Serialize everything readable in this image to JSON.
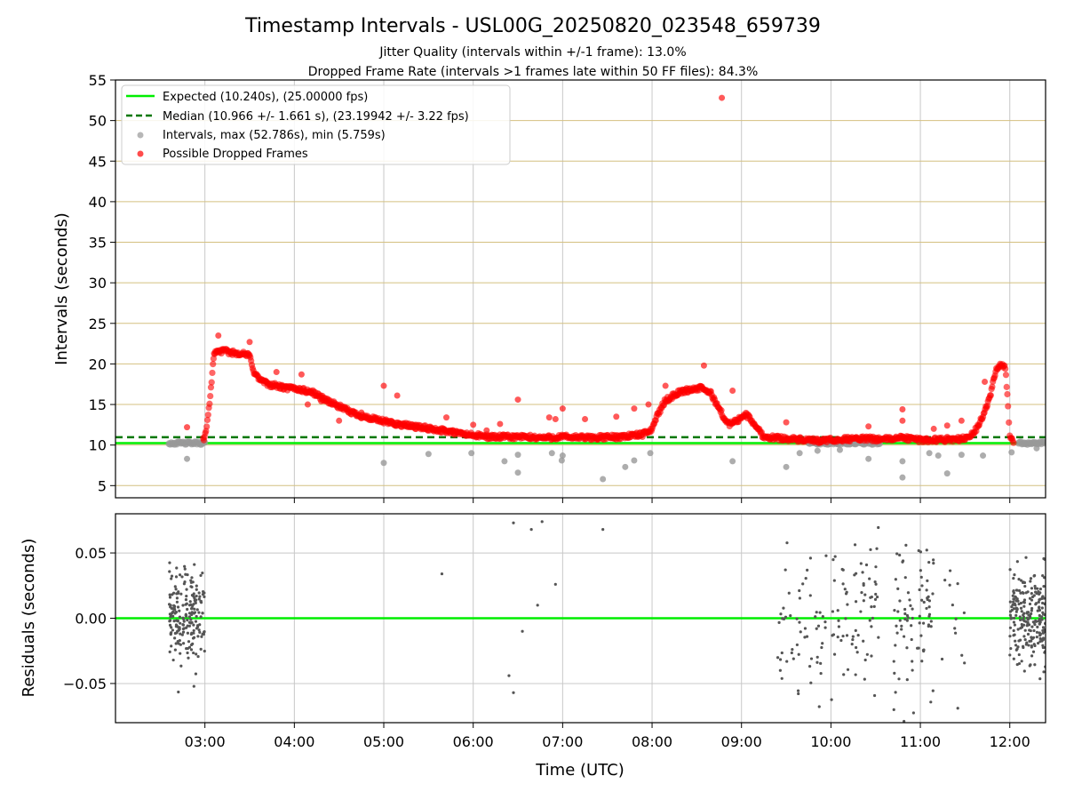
{
  "title": "Timestamp Intervals - USL00G_20250820_023548_659739",
  "subtitle_line1": "Jitter Quality (intervals within +/-1 frame): 13.0%",
  "subtitle_line2": "Dropped Frame Rate (intervals >1 frames late within 50 FF files): 84.3%",
  "colors": {
    "expected": "#00ee00",
    "median": "#007700",
    "intervals": "#999999",
    "dropped": "#ff0000",
    "residuals": "#555555",
    "hgrid_top": "#d4c080",
    "grid": "#c8c8c8"
  },
  "chart_data": [
    {
      "type": "scatter",
      "title": "",
      "xlabel": "",
      "ylabel": "Intervals (seconds)",
      "x_unit": "hours UTC",
      "xlim": [
        2.0,
        12.4
      ],
      "ylim": [
        3.5,
        55
      ],
      "yticks": [
        5,
        10,
        15,
        20,
        25,
        30,
        35,
        40,
        45,
        50,
        55
      ],
      "xticks": [
        3,
        4,
        5,
        6,
        7,
        8,
        9,
        10,
        11,
        12
      ],
      "xtick_labels": [
        "03:00",
        "04:00",
        "05:00",
        "06:00",
        "07:00",
        "08:00",
        "09:00",
        "10:00",
        "11:00",
        "12:00"
      ],
      "hgrid": true,
      "vgrid": true,
      "legend_position": "top-left",
      "legend": [
        "Expected (10.240s), (25.00000 fps)",
        "Median (10.966 +/- 1.661 s), (23.19942 +/- 3.22 fps)",
        "Intervals, max (52.786s), min (5.759s)",
        "Possible Dropped Frames"
      ],
      "expected_line": 10.24,
      "median_line": 10.966,
      "dropped_trend": [
        [
          2.98,
          10.6
        ],
        [
          3.02,
          12
        ],
        [
          3.06,
          16
        ],
        [
          3.09,
          20
        ],
        [
          3.11,
          21.5
        ],
        [
          3.2,
          21.6
        ],
        [
          3.3,
          21.4
        ],
        [
          3.4,
          21.3
        ],
        [
          3.5,
          21
        ],
        [
          3.55,
          19
        ],
        [
          3.6,
          18.2
        ],
        [
          3.7,
          17.5
        ],
        [
          3.8,
          17.3
        ],
        [
          3.9,
          17
        ],
        [
          4.0,
          17
        ],
        [
          4.2,
          16.5
        ],
        [
          4.4,
          15.3
        ],
        [
          4.6,
          14.2
        ],
        [
          4.8,
          13.4
        ],
        [
          5.0,
          12.9
        ],
        [
          5.2,
          12.5
        ],
        [
          5.4,
          12.2
        ],
        [
          5.6,
          11.9
        ],
        [
          5.8,
          11.5
        ],
        [
          6.0,
          11.2
        ],
        [
          6.2,
          11
        ],
        [
          6.5,
          11
        ],
        [
          6.8,
          10.9
        ],
        [
          7.0,
          11
        ],
        [
          7.3,
          10.9
        ],
        [
          7.6,
          11
        ],
        [
          7.9,
          11.3
        ],
        [
          8.0,
          12
        ],
        [
          8.05,
          13.5
        ],
        [
          8.15,
          15.5
        ],
        [
          8.3,
          16.5
        ],
        [
          8.45,
          16.9
        ],
        [
          8.55,
          17
        ],
        [
          8.65,
          16.5
        ],
        [
          8.75,
          14.5
        ],
        [
          8.85,
          12.5
        ],
        [
          8.95,
          13
        ],
        [
          9.05,
          13.8
        ],
        [
          9.15,
          12.5
        ],
        [
          9.25,
          11
        ],
        [
          9.5,
          10.8
        ],
        [
          9.7,
          10.6
        ],
        [
          9.85,
          10.5
        ],
        [
          10.3,
          10.8
        ],
        [
          10.6,
          10.7
        ],
        [
          10.8,
          10.9
        ],
        [
          11.0,
          10.6
        ],
        [
          11.3,
          10.7
        ],
        [
          11.5,
          10.8
        ],
        [
          11.6,
          11.5
        ],
        [
          11.7,
          13.5
        ],
        [
          11.78,
          16
        ],
        [
          11.85,
          19.5
        ],
        [
          11.9,
          20
        ],
        [
          11.95,
          19.5
        ],
        [
          11.98,
          15
        ],
        [
          12.0,
          11
        ],
        [
          12.05,
          10.4
        ]
      ],
      "expected_segments": [
        [
          2.6,
          3.0
        ],
        [
          9.75,
          10.55
        ],
        [
          12.1,
          12.4
        ]
      ],
      "dropped_outliers": [
        [
          2.8,
          12.2
        ],
        [
          3.15,
          23.5
        ],
        [
          3.5,
          22.7
        ],
        [
          3.8,
          19
        ],
        [
          4.08,
          18.7
        ],
        [
          4.15,
          15
        ],
        [
          4.3,
          15.4
        ],
        [
          4.5,
          13
        ],
        [
          4.75,
          14
        ],
        [
          5.0,
          17.3
        ],
        [
          5.15,
          16.1
        ],
        [
          5.35,
          12.5
        ],
        [
          5.55,
          12
        ],
        [
          5.7,
          13.4
        ],
        [
          5.75,
          11.8
        ],
        [
          6.0,
          12.5
        ],
        [
          6.15,
          11.8
        ],
        [
          6.3,
          12.6
        ],
        [
          6.5,
          15.6
        ],
        [
          6.85,
          13.4
        ],
        [
          6.92,
          13.2
        ],
        [
          7.0,
          14.5
        ],
        [
          7.25,
          13.2
        ],
        [
          7.6,
          13.5
        ],
        [
          7.8,
          14.5
        ],
        [
          7.96,
          15
        ],
        [
          8.15,
          17.3
        ],
        [
          8.58,
          19.8
        ],
        [
          8.78,
          52.8
        ],
        [
          8.9,
          16.7
        ],
        [
          9.5,
          12.8
        ],
        [
          10.42,
          12.3
        ],
        [
          10.8,
          13
        ],
        [
          10.8,
          14.4
        ],
        [
          11.15,
          12
        ],
        [
          11.3,
          12.4
        ],
        [
          11.46,
          13
        ],
        [
          11.72,
          17.8
        ]
      ],
      "interval_outliers": [
        [
          2.8,
          8.3
        ],
        [
          5.0,
          7.8
        ],
        [
          5.5,
          8.9
        ],
        [
          5.98,
          9
        ],
        [
          6.35,
          8
        ],
        [
          6.5,
          6.6
        ],
        [
          6.5,
          8.8
        ],
        [
          6.88,
          9
        ],
        [
          6.99,
          8.1
        ],
        [
          7.0,
          8.7
        ],
        [
          7.45,
          5.8
        ],
        [
          7.7,
          7.3
        ],
        [
          7.8,
          8.1
        ],
        [
          7.98,
          9
        ],
        [
          8.9,
          8
        ],
        [
          9.5,
          7.3
        ],
        [
          9.65,
          9
        ],
        [
          9.85,
          9.3
        ],
        [
          10.1,
          9.4
        ],
        [
          10.42,
          8.3
        ],
        [
          10.8,
          6
        ],
        [
          10.8,
          8
        ],
        [
          11.1,
          9
        ],
        [
          11.2,
          8.7
        ],
        [
          11.3,
          6.5
        ],
        [
          11.46,
          8.8
        ],
        [
          11.7,
          8.7
        ],
        [
          12.02,
          9.1
        ],
        [
          12.3,
          9.6
        ]
      ]
    },
    {
      "type": "scatter",
      "title": "",
      "xlabel": "Time (UTC)",
      "ylabel": "Residuals (seconds)",
      "x_unit": "hours UTC",
      "xlim": [
        2.0,
        12.4
      ],
      "ylim": [
        -0.08,
        0.08
      ],
      "yticks": [
        -0.05,
        0.0,
        0.05
      ],
      "ytick_labels": [
        "−0.05",
        "0.00",
        "0.05"
      ],
      "xticks": [
        3,
        4,
        5,
        6,
        7,
        8,
        9,
        10,
        11,
        12
      ],
      "xtick_labels": [
        "03:00",
        "04:00",
        "05:00",
        "06:00",
        "07:00",
        "08:00",
        "09:00",
        "10:00",
        "11:00",
        "12:00"
      ],
      "hgrid": true,
      "vgrid": true,
      "zero_line": 0.0,
      "residual_clusters": [
        {
          "x0": 2.6,
          "x1": 3.0,
          "n": 200,
          "sd": 0.025
        },
        {
          "x0": 9.4,
          "x1": 9.95,
          "n": 55,
          "sd": 0.045
        },
        {
          "x0": 10.0,
          "x1": 10.55,
          "n": 70,
          "sd": 0.045
        },
        {
          "x0": 10.7,
          "x1": 11.15,
          "n": 80,
          "sd": 0.045
        },
        {
          "x0": 11.1,
          "x1": 11.5,
          "n": 14,
          "sd": 0.04
        },
        {
          "x0": 12.0,
          "x1": 12.4,
          "n": 230,
          "sd": 0.025
        }
      ],
      "residual_points": [
        [
          5.65,
          0.034
        ],
        [
          6.4,
          -0.044
        ],
        [
          6.45,
          0.073
        ],
        [
          6.45,
          -0.057
        ],
        [
          6.55,
          -0.01
        ],
        [
          6.65,
          0.068
        ],
        [
          6.72,
          0.01
        ],
        [
          6.77,
          0.074
        ],
        [
          6.92,
          0.026
        ],
        [
          7.45,
          0.068
        ]
      ]
    }
  ]
}
